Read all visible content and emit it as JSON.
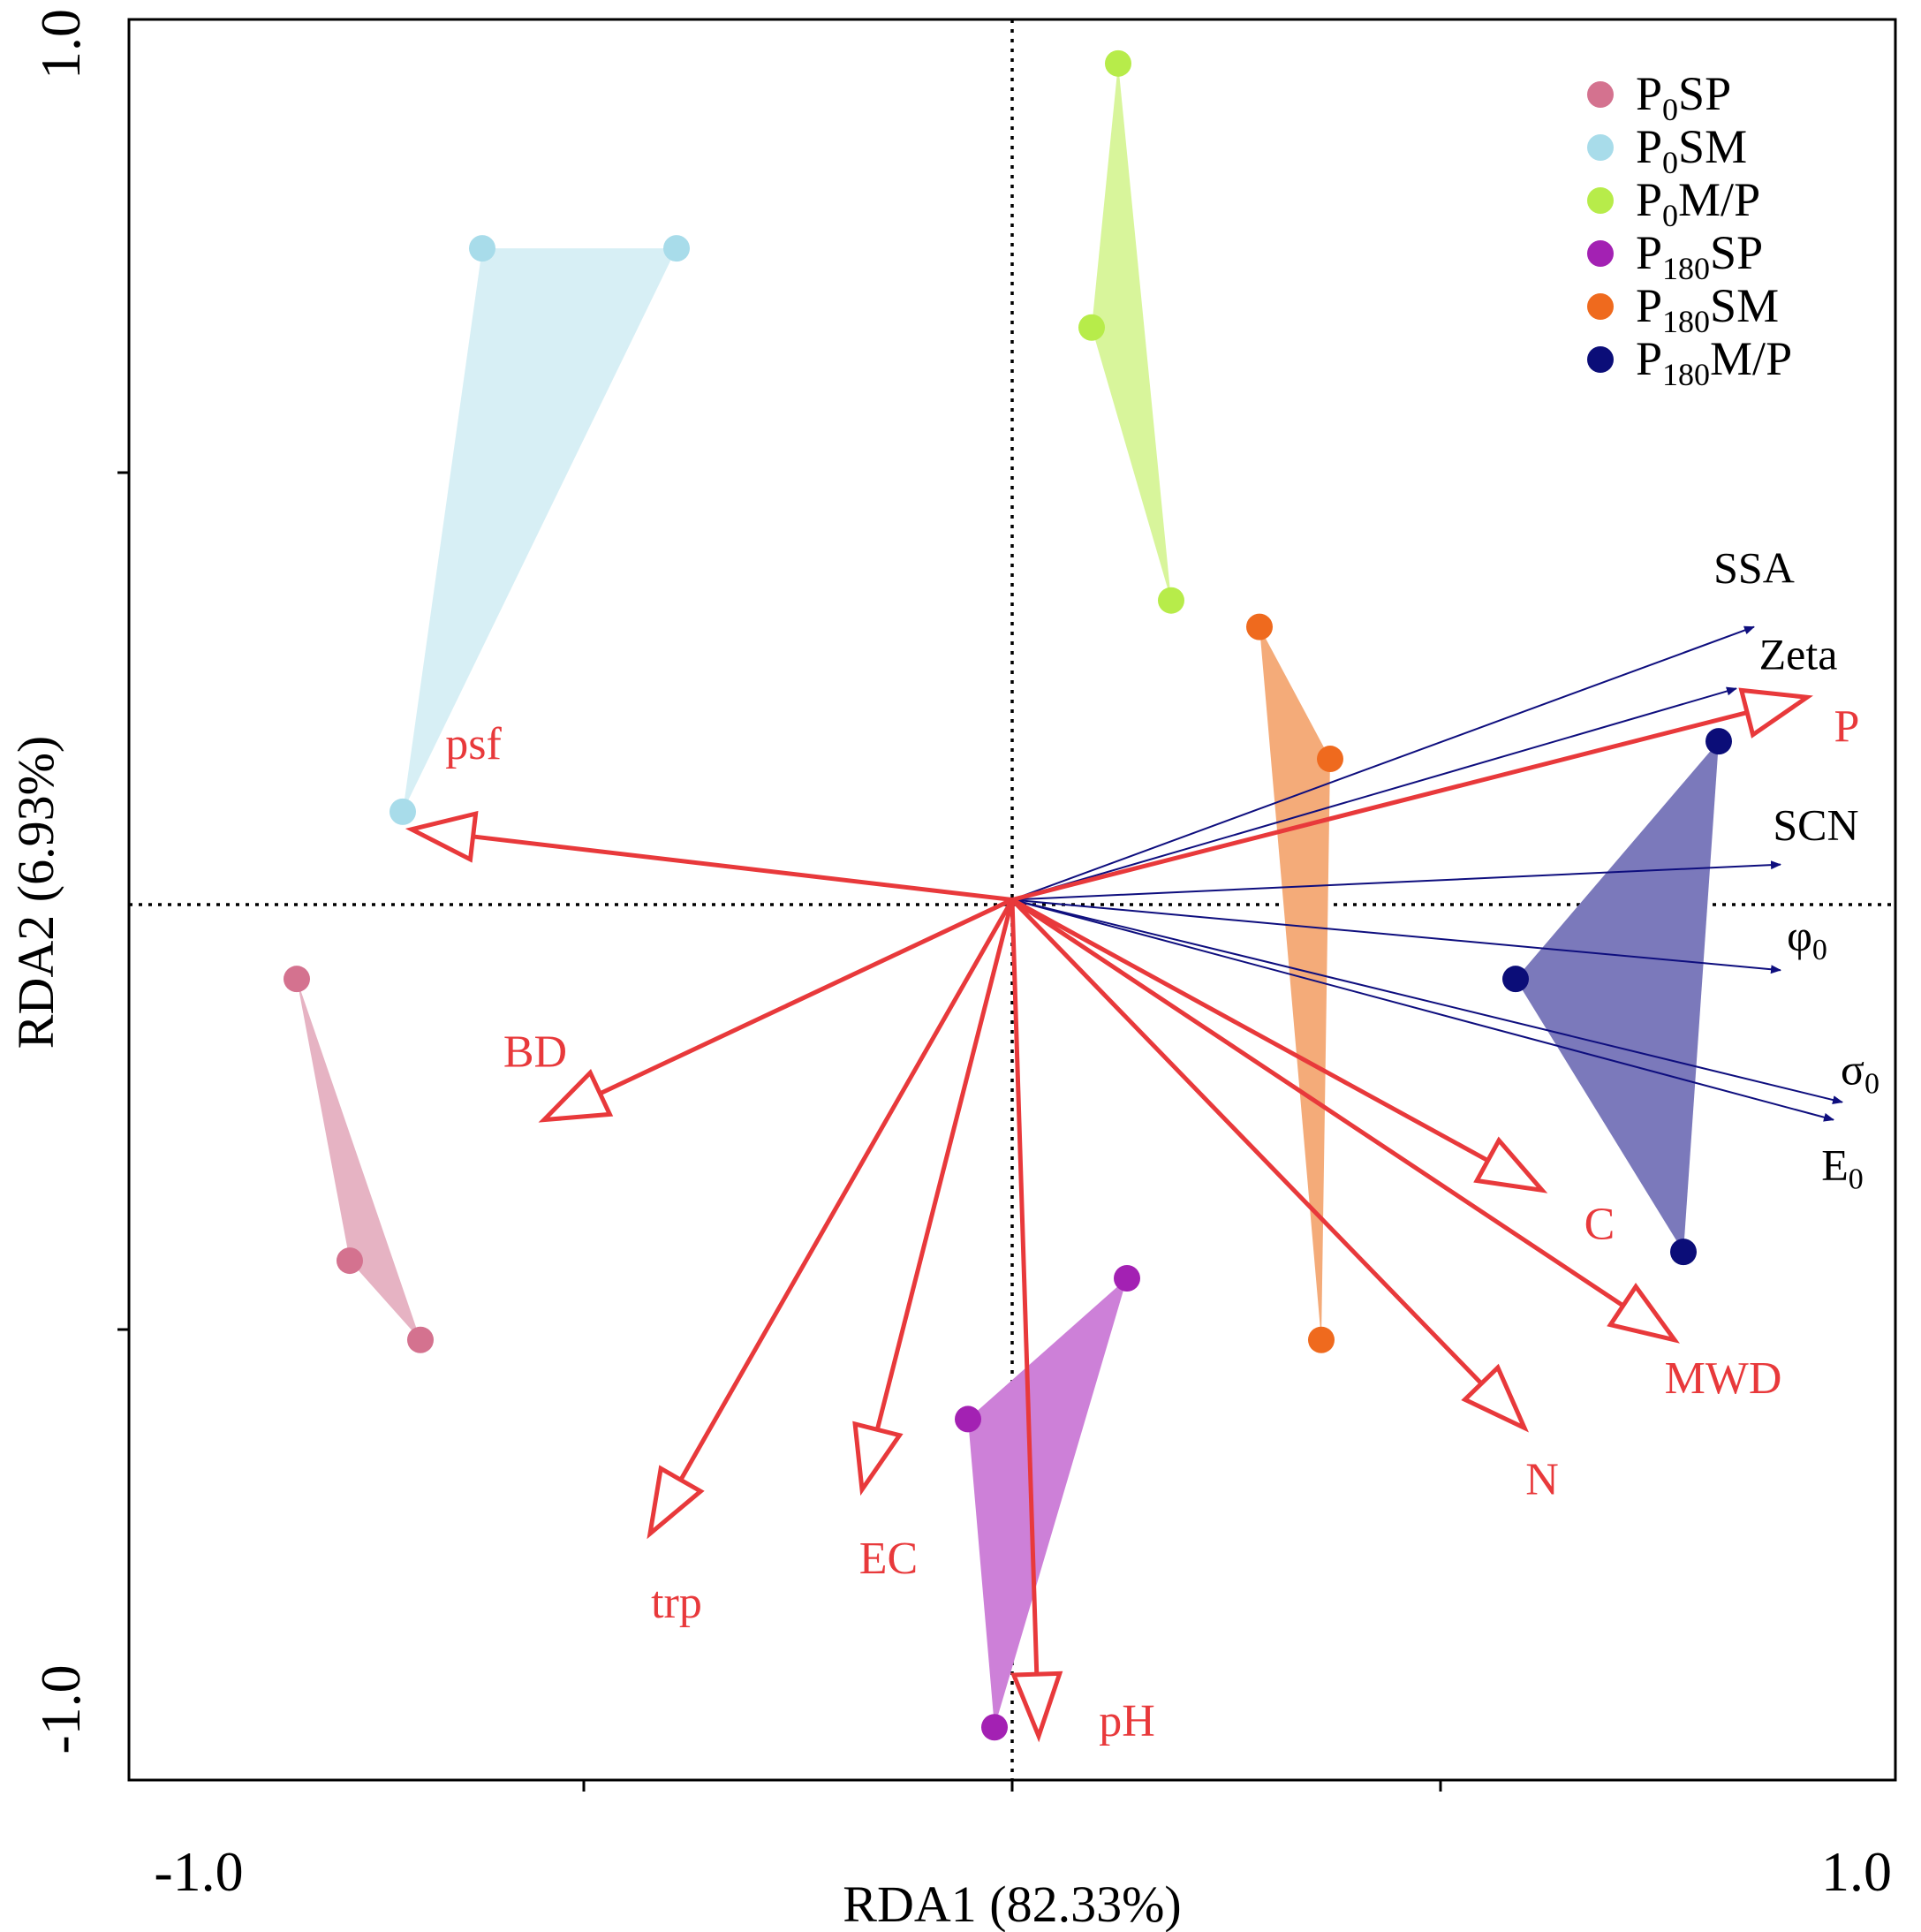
{
  "chart_data": {
    "type": "scatter",
    "subtype": "rda-biplot",
    "xlabel": "RDA1 (82.33%)",
    "ylabel": "RDA2 (6.93%)",
    "xlim": [
      -1.0,
      1.0
    ],
    "ylim": [
      -1.0,
      1.0
    ],
    "xticks": [
      -1.0,
      -0.5,
      0,
      0.5,
      1.0
    ],
    "yticks": [
      -1.0,
      -0.5,
      0,
      0.5,
      1.0
    ],
    "xtick_labels": [
      {
        "value": -1.0,
        "label": "-1.0"
      },
      {
        "value": 1.0,
        "label": "1.0"
      }
    ],
    "ytick_labels": [
      {
        "value": -1.0,
        "label": "-1.0"
      },
      {
        "value": 1.0,
        "label": "1.0"
      }
    ],
    "reference_lines": "dotted lines at x = 0 and y = 0",
    "legend_position": "top-right",
    "groups": [
      {
        "name": "P0SP",
        "label_main": "P",
        "label_sub": "0",
        "label_tail": "SP",
        "color": "#d4728f",
        "fill": "#e6b3c3",
        "points": [
          [
            -0.81,
            -0.09
          ],
          [
            -0.75,
            -0.41
          ],
          [
            -0.67,
            -0.5
          ]
        ]
      },
      {
        "name": "P0SM",
        "label_main": "P",
        "label_sub": "0",
        "label_tail": "SM",
        "color": "#a8dcea",
        "fill": "#d7eff5",
        "points": [
          [
            -0.6,
            0.74
          ],
          [
            -0.38,
            0.74
          ],
          [
            -0.69,
            0.1
          ]
        ]
      },
      {
        "name": "P0M/P",
        "label_main": "P",
        "label_sub": "0",
        "label_tail": "M/P",
        "color": "#b7ec4a",
        "fill": "#d8f59b",
        "points": [
          [
            0.12,
            0.95
          ],
          [
            0.09,
            0.65
          ],
          [
            0.18,
            0.34
          ]
        ]
      },
      {
        "name": "P180SP",
        "label_main": "P",
        "label_sub": "180",
        "label_tail": "SP",
        "color": "#a321b3",
        "fill": "#cd80d8",
        "points": [
          [
            0.13,
            -0.43
          ],
          [
            -0.05,
            -0.59
          ],
          [
            -0.02,
            -0.94
          ]
        ]
      },
      {
        "name": "P180SM",
        "label_main": "P",
        "label_sub": "180",
        "label_tail": "SM",
        "color": "#ef6a1e",
        "fill": "#f4ab79",
        "points": [
          [
            0.28,
            0.31
          ],
          [
            0.36,
            0.16
          ],
          [
            0.35,
            -0.5
          ]
        ]
      },
      {
        "name": "P180M/P",
        "label_main": "P",
        "label_sub": "180",
        "label_tail": "M/P",
        "color": "#0b0d78",
        "fill": "#7b79bb",
        "points": [
          [
            0.8,
            0.18
          ],
          [
            0.57,
            -0.09
          ],
          [
            0.76,
            -0.4
          ]
        ]
      }
    ],
    "response_vectors": [
      {
        "label": "SSA",
        "sub": "",
        "x": 0.84,
        "y": 0.31
      },
      {
        "label": "Zeta",
        "sub": "",
        "x": 0.82,
        "y": 0.24
      },
      {
        "label": "SCN",
        "sub": "",
        "x": 0.87,
        "y": 0.04
      },
      {
        "label": "φ",
        "sub": "0",
        "x": 0.87,
        "y": -0.08
      },
      {
        "label": "σ",
        "sub": "0",
        "x": 0.94,
        "y": -0.23
      },
      {
        "label": "E",
        "sub": "0",
        "x": 0.93,
        "y": -0.25
      }
    ],
    "explanatory_vectors": [
      {
        "label": "P",
        "x": 0.9,
        "y": 0.23
      },
      {
        "label": "psf",
        "x": -0.68,
        "y": 0.08
      },
      {
        "label": "BD",
        "x": -0.53,
        "y": -0.25
      },
      {
        "label": "C",
        "x": 0.6,
        "y": -0.33
      },
      {
        "label": "MWD",
        "x": 0.75,
        "y": -0.5
      },
      {
        "label": "N",
        "x": 0.58,
        "y": -0.6
      },
      {
        "label": "trp",
        "x": -0.41,
        "y": -0.72
      },
      {
        "label": "EC",
        "x": -0.17,
        "y": -0.67
      },
      {
        "label": "pH",
        "x": 0.03,
        "y": -0.95
      }
    ],
    "colors": {
      "explanatory": "#e8393b",
      "response": "#0e0e7e",
      "axes": "#000000"
    }
  }
}
